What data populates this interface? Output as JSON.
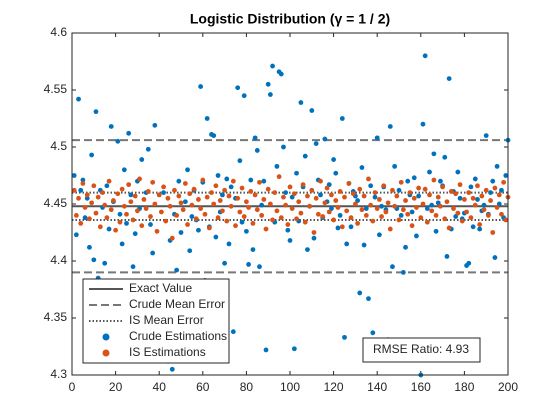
{
  "chart_data": {
    "type": "scatter",
    "title": "Logistic Distribution (γ = 1 / 2)",
    "x": [
      1,
      2,
      3,
      4,
      5,
      6,
      7,
      8,
      9,
      10,
      11,
      12,
      13,
      14,
      15,
      16,
      17,
      18,
      19,
      20,
      21,
      22,
      23,
      24,
      25,
      26,
      27,
      28,
      29,
      30,
      31,
      32,
      33,
      34,
      35,
      36,
      37,
      38,
      39,
      40,
      41,
      42,
      43,
      44,
      45,
      46,
      47,
      48,
      49,
      50,
      51,
      52,
      53,
      54,
      55,
      56,
      57,
      58,
      59,
      60,
      61,
      62,
      63,
      64,
      65,
      66,
      67,
      68,
      69,
      70,
      71,
      72,
      73,
      74,
      75,
      76,
      77,
      78,
      79,
      80,
      81,
      82,
      83,
      84,
      85,
      86,
      87,
      88,
      89,
      90,
      91,
      92,
      93,
      94,
      95,
      96,
      97,
      98,
      99,
      100,
      101,
      102,
      103,
      104,
      105,
      106,
      107,
      108,
      109,
      110,
      111,
      112,
      113,
      114,
      115,
      116,
      117,
      118,
      119,
      120,
      121,
      122,
      123,
      124,
      125,
      126,
      127,
      128,
      129,
      130,
      131,
      132,
      133,
      134,
      135,
      136,
      137,
      138,
      139,
      140,
      141,
      142,
      143,
      144,
      145,
      146,
      147,
      148,
      149,
      150,
      151,
      152,
      153,
      154,
      155,
      156,
      157,
      158,
      159,
      160,
      161,
      162,
      163,
      164,
      165,
      166,
      167,
      168,
      169,
      170,
      171,
      172,
      173,
      174,
      175,
      176,
      177,
      178,
      179,
      180,
      181,
      182,
      183,
      184,
      185,
      186,
      187,
      188,
      189,
      190,
      191,
      192,
      193,
      194,
      195,
      196,
      197,
      198,
      199,
      200
    ],
    "series": [
      {
        "name": "Crude Estimations",
        "color": "#0072bd",
        "values": [
          4.475,
          4.423,
          4.542,
          4.462,
          4.471,
          4.438,
          4.455,
          4.412,
          4.493,
          4.401,
          4.531,
          4.385,
          4.462,
          4.447,
          4.398,
          4.466,
          4.428,
          4.518,
          4.452,
          4.372,
          4.505,
          4.441,
          4.415,
          4.48,
          4.433,
          4.512,
          4.458,
          4.395,
          4.424,
          4.47,
          4.446,
          4.489,
          4.377,
          4.46,
          4.498,
          4.432,
          4.407,
          4.519,
          4.353,
          4.382,
          4.337,
          4.46,
          4.349,
          4.312,
          4.418,
          4.305,
          4.441,
          4.392,
          4.47,
          4.425,
          4.373,
          4.452,
          4.48,
          4.409,
          4.439,
          4.462,
          4.436,
          4.427,
          4.553,
          4.469,
          4.383,
          4.525,
          4.43,
          4.511,
          4.51,
          4.421,
          4.475,
          4.443,
          4.458,
          4.398,
          4.472,
          4.415,
          4.465,
          4.338,
          4.455,
          4.552,
          4.488,
          4.434,
          4.545,
          4.426,
          4.397,
          4.471,
          4.41,
          4.508,
          4.497,
          4.395,
          4.449,
          4.47,
          4.322,
          4.555,
          4.546,
          4.571,
          4.434,
          4.483,
          4.566,
          4.564,
          4.5,
          4.46,
          4.427,
          4.418,
          4.456,
          4.323,
          4.477,
          4.435,
          4.539,
          4.465,
          4.492,
          4.41,
          4.448,
          4.532,
          4.42,
          4.503,
          4.471,
          4.458,
          4.438,
          4.507,
          4.452,
          4.467,
          4.446,
          4.489,
          4.477,
          4.429,
          4.44,
          4.525,
          4.333,
          4.415,
          4.468,
          4.43,
          4.461,
          4.457,
          4.453,
          4.372,
          4.482,
          4.414,
          4.446,
          4.367,
          4.466,
          4.337,
          4.456,
          4.508,
          4.423,
          4.448,
          4.465,
          4.445,
          4.331,
          4.518,
          4.395,
          4.483,
          4.446,
          4.462,
          4.44,
          4.39,
          4.412,
          4.47,
          4.458,
          4.443,
          4.473,
          4.422,
          4.457,
          4.3,
          4.52,
          4.58,
          4.446,
          4.478,
          4.449,
          4.494,
          4.426,
          4.451,
          4.47,
          4.466,
          4.491,
          4.404,
          4.56,
          4.428,
          4.461,
          4.439,
          4.478,
          4.455,
          4.437,
          4.442,
          4.396,
          4.398,
          4.465,
          4.43,
          4.472,
          4.454,
          4.428,
          4.444,
          4.449,
          4.51,
          4.441,
          4.46,
          4.47,
          4.403,
          4.483,
          4.45,
          4.462,
          4.438,
          4.475,
          4.506
        ]
      },
      {
        "name": "IS Estimations",
        "color": "#d95319",
        "values": [
          4.462,
          4.44,
          4.455,
          4.433,
          4.468,
          4.447,
          4.458,
          4.437,
          4.451,
          4.466,
          4.442,
          4.456,
          4.43,
          4.46,
          4.449,
          4.438,
          4.47,
          4.445,
          4.453,
          4.427,
          4.459,
          4.434,
          4.463,
          4.448,
          4.441,
          4.467,
          4.452,
          4.436,
          4.457,
          4.444,
          4.472,
          4.431,
          4.454,
          4.446,
          4.461,
          4.439,
          4.469,
          4.45,
          4.426,
          4.458,
          4.443,
          4.465,
          4.435,
          4.455,
          4.448,
          4.42,
          4.462,
          4.44,
          4.457,
          4.451,
          4.445,
          4.468,
          4.432,
          4.459,
          4.449,
          4.463,
          4.437,
          4.454,
          4.446,
          4.471,
          4.441,
          4.456,
          4.429,
          4.46,
          4.45,
          4.466,
          4.438,
          4.453,
          4.444,
          4.462,
          4.435,
          4.457,
          4.448,
          4.47,
          4.431,
          4.455,
          4.443,
          4.464,
          4.439,
          4.452,
          4.447,
          4.461,
          4.433,
          4.458,
          4.445,
          4.469,
          4.44,
          4.454,
          4.428,
          4.463,
          4.45,
          4.436,
          4.46,
          4.444,
          4.474,
          4.438,
          4.456,
          4.449,
          4.432,
          4.465,
          4.446,
          4.459,
          4.437,
          4.452,
          4.442,
          4.467,
          4.434,
          4.457,
          4.448,
          4.462,
          4.425,
          4.455,
          4.441,
          4.47,
          4.439,
          4.451,
          4.464,
          4.443,
          4.458,
          4.436,
          4.453,
          4.447,
          4.461,
          4.43,
          4.456,
          4.444,
          4.468,
          4.438,
          4.459,
          4.45,
          4.433,
          4.463,
          4.445,
          4.457,
          4.44,
          4.472,
          4.449,
          4.435,
          4.46,
          4.446,
          4.454,
          4.439,
          4.466,
          4.443,
          4.451,
          4.428,
          4.462,
          4.448,
          4.457,
          4.436,
          4.469,
          4.445,
          4.453,
          4.441,
          4.46,
          4.431,
          4.455,
          4.447,
          4.464,
          4.438,
          4.45,
          4.463,
          4.434,
          4.458,
          4.444,
          4.471,
          4.44,
          4.456,
          4.448,
          4.465,
          4.437,
          4.452,
          4.429,
          4.461,
          4.446,
          4.459,
          4.442,
          4.467,
          4.435,
          4.454,
          4.443,
          4.46,
          4.438,
          4.455,
          4.449,
          4.466,
          4.432,
          4.457,
          4.445,
          4.462,
          4.44,
          4.453,
          4.425,
          4.464,
          4.447,
          4.458,
          4.441,
          4.469,
          4.436,
          4.456
        ]
      }
    ],
    "hlines": [
      {
        "name": "Exact Value",
        "color": "#555555",
        "style": "solid",
        "values": [
          4.448
        ]
      },
      {
        "name": "Crude Mean Error",
        "color": "#777777",
        "style": "dashed",
        "values": [
          4.506,
          4.39
        ]
      },
      {
        "name": "IS Mean Error",
        "color": "#555555",
        "style": "dotted",
        "values": [
          4.46,
          4.436
        ]
      }
    ],
    "xlim": [
      0,
      200
    ],
    "xticks": [
      0,
      20,
      40,
      60,
      80,
      100,
      120,
      140,
      160,
      180,
      200
    ],
    "ylim": [
      4.3,
      4.6
    ],
    "yticks": [
      4.3,
      4.35,
      4.4,
      4.45,
      4.5,
      4.55,
      4.6
    ],
    "legend": "lower left",
    "annotation": "RMSE Ratio: 4.93"
  }
}
